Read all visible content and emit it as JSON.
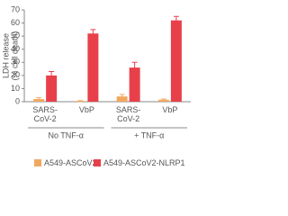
{
  "chart_data": {
    "type": "bar",
    "ylabel": [
      "LDH release",
      "(% cell death)"
    ],
    "categories": [
      "SARS-CoV-2",
      "VbP",
      "SARS-CoV-2",
      "VbP"
    ],
    "groups": [
      "No TNF-α",
      "+ TNF-α"
    ],
    "series": [
      {
        "name": "A549-ASCoV2",
        "color": "#f0a860",
        "values": [
          2,
          0.5,
          4,
          1.5
        ],
        "errors": [
          1,
          0.3,
          1.5,
          0.6
        ]
      },
      {
        "name": "A549-ASCoV2-NLRP1",
        "color": "#e8404a",
        "values": [
          20,
          52,
          26,
          62
        ],
        "errors": [
          3,
          3,
          4,
          3
        ]
      }
    ],
    "ylim": [
      0,
      70
    ],
    "yticks": [
      0,
      10,
      20,
      30,
      40,
      50,
      60,
      70
    ],
    "grid": false
  }
}
